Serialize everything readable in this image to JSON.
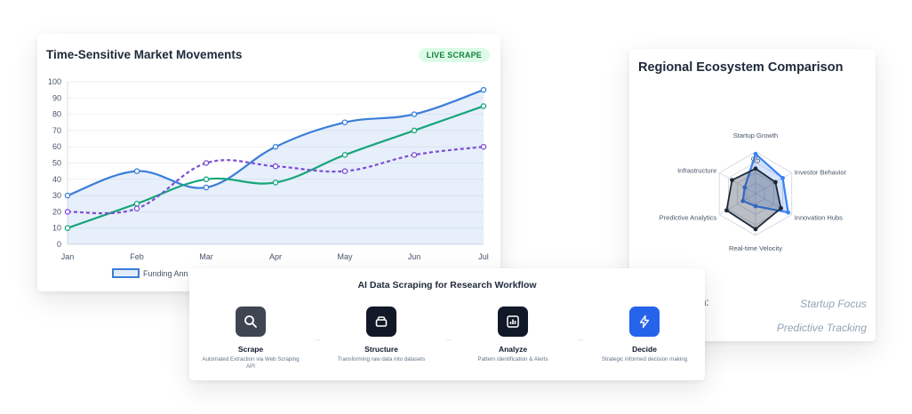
{
  "chart_data": [
    {
      "type": "line",
      "title": "Time-Sensitive Market Movements",
      "badge": "LIVE SCRAPE",
      "categories": [
        "Jan",
        "Feb",
        "Mar",
        "Apr",
        "May",
        "Jun",
        "Jul"
      ],
      "ylim": [
        0,
        100
      ],
      "yticks": [
        0,
        10,
        20,
        30,
        40,
        50,
        60,
        70,
        80,
        90,
        100
      ],
      "series": [
        {
          "name": "Funding Ann",
          "values": [
            30,
            45,
            35,
            60,
            75,
            80,
            95
          ],
          "color": "#3b7dd8",
          "style": "solid",
          "fill": true
        },
        {
          "name": "",
          "values": [
            10,
            25,
            40,
            38,
            55,
            70,
            85
          ],
          "color": "#16a67a",
          "style": "solid",
          "fill": false
        },
        {
          "name": "",
          "values": [
            20,
            22,
            50,
            48,
            45,
            55,
            60
          ],
          "color": "#7c4dd6",
          "style": "dashed",
          "fill": false
        }
      ],
      "legend": "bottom"
    },
    {
      "type": "radar",
      "title": "Regional Ecosystem Comparison",
      "axes": [
        "Startup Growth",
        "Investor Behavior",
        "Innovation Hubs",
        "Real-time Velocity",
        "Predictive Analytics",
        "Infrastructure"
      ],
      "rmax": 100,
      "series": [
        {
          "name": "",
          "values": [
            95,
            75,
            90,
            30,
            35,
            30
          ],
          "color": "#3b82f6"
        },
        {
          "name": "",
          "values": [
            60,
            55,
            70,
            85,
            80,
            65
          ],
          "color": "#1e293b"
        }
      ],
      "tick_label": "95",
      "extra_texts": [
        "n:",
        "Startup Focus",
        "Predictive Tracking"
      ]
    }
  ],
  "workflow": {
    "title": "AI Data Scraping for Research Workflow",
    "steps": [
      {
        "title": "Scrape",
        "desc": "Automated Extraction via Web Scraping API",
        "icon": "search-icon",
        "color": "#374151"
      },
      {
        "title": "Structure",
        "desc": "Transforming raw data into datasets",
        "icon": "database-icon",
        "color": "#111827"
      },
      {
        "title": "Analyze",
        "desc": "Pattern identification & Alerts",
        "icon": "bar-chart-icon",
        "color": "#111827"
      },
      {
        "title": "Decide",
        "desc": "Strategic informed decision making",
        "icon": "lightning-icon",
        "color": "#2563eb"
      }
    ],
    "arrow": "→"
  }
}
